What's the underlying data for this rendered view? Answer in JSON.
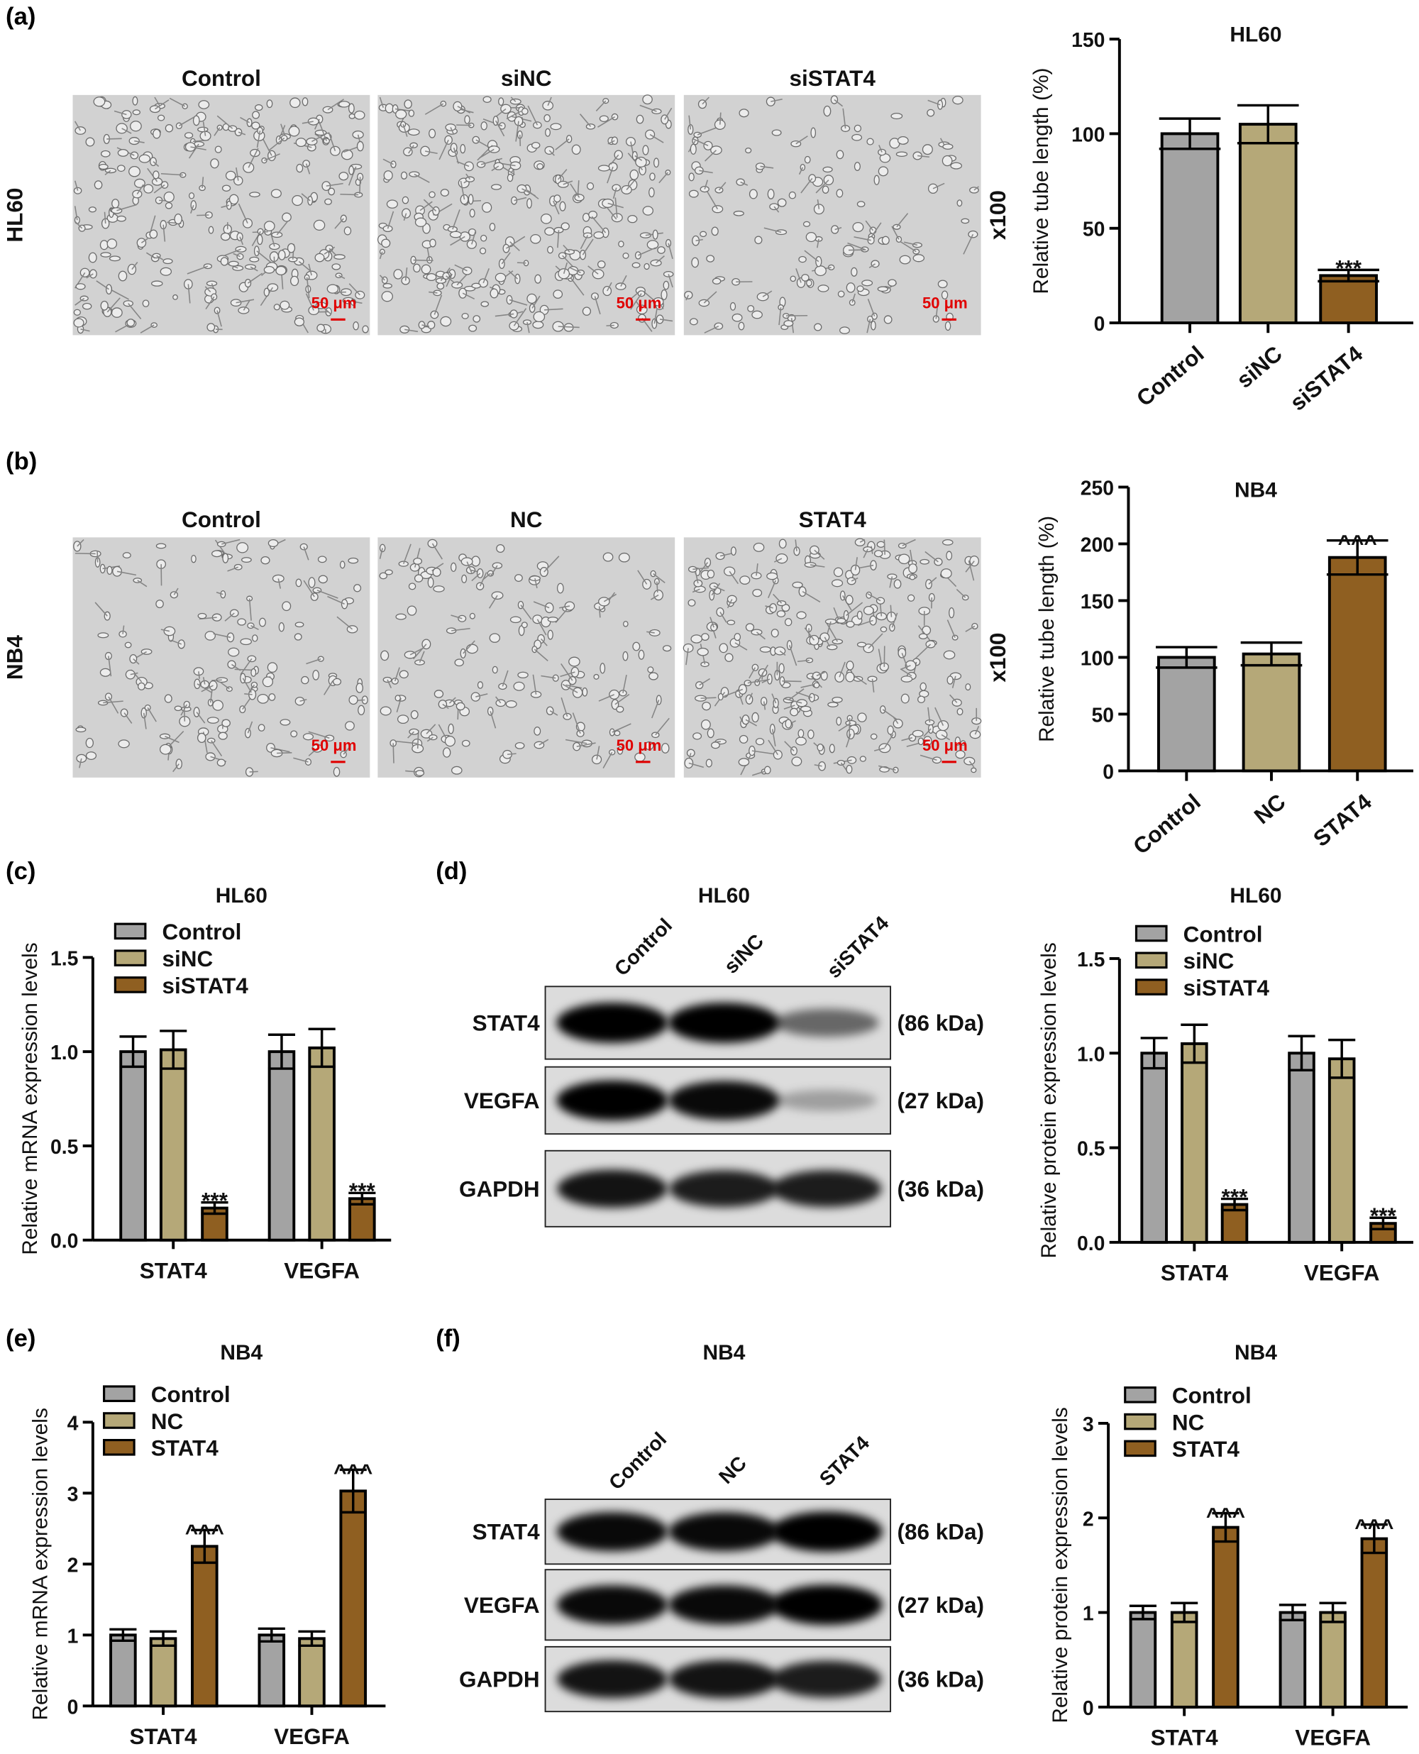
{
  "panel_labels": [
    "(a)",
    "(b)",
    "(c)",
    "(d)",
    "(e)",
    "(f)"
  ],
  "colors": {
    "control": "#a3a3a3",
    "nc": "#b5a878",
    "treatment": "#8f5f21"
  },
  "micrographs": [
    {
      "row_label": "HL60",
      "magnification": "x100",
      "scale_bar": "50 μm",
      "titles": [
        "Control",
        "siNC",
        "siSTAT4"
      ]
    },
    {
      "row_label": "NB4",
      "magnification": "x100",
      "scale_bar": "50 μm",
      "titles": [
        "Control",
        "NC",
        "STAT4"
      ]
    }
  ],
  "western_blots": [
    {
      "title": "HL60",
      "lanes": [
        "Control",
        "siNC",
        "siSTAT4"
      ],
      "rows": [
        {
          "protein": "STAT4",
          "size": "(86 kDa)",
          "band_intensity": [
            1.0,
            1.0,
            0.45
          ]
        },
        {
          "protein": "VEGFA",
          "size": "(27 kDa)",
          "band_intensity": [
            1.0,
            0.95,
            0.15
          ]
        },
        {
          "protein": "GAPDH",
          "size": "(36 kDa)",
          "band_intensity": [
            0.9,
            0.85,
            0.85
          ]
        }
      ]
    },
    {
      "title": "NB4",
      "lanes": [
        "Control",
        "NC",
        "STAT4"
      ],
      "rows": [
        {
          "protein": "STAT4",
          "size": "(86 kDa)",
          "band_intensity": [
            0.95,
            0.95,
            1.0
          ]
        },
        {
          "protein": "VEGFA",
          "size": "(27 kDa)",
          "band_intensity": [
            0.95,
            0.95,
            1.0
          ]
        },
        {
          "protein": "GAPDH",
          "size": "(36 kDa)",
          "band_intensity": [
            0.9,
            0.9,
            0.85
          ]
        }
      ]
    }
  ],
  "chart_data": [
    {
      "type": "bar",
      "title": "HL60",
      "ylabel": "Relative tube length (%)",
      "ylim": [
        0,
        150
      ],
      "yticks": [
        0,
        50,
        100,
        150
      ],
      "ytick_labels": [
        "0",
        "50",
        "100",
        "150"
      ],
      "categories": [
        "Control",
        "siNC",
        "siSTAT4"
      ],
      "values": [
        100,
        105,
        25
      ],
      "errors": [
        8,
        10,
        3
      ],
      "significance": [
        "",
        "",
        "***"
      ],
      "grid": false
    },
    {
      "type": "bar",
      "title": "NB4",
      "ylabel": "Relative tube length (%)",
      "ylim": [
        0,
        250
      ],
      "yticks": [
        0,
        50,
        100,
        150,
        200,
        250
      ],
      "ytick_labels": [
        "0",
        "50",
        "100",
        "150",
        "200",
        "250"
      ],
      "categories": [
        "Control",
        "NC",
        "STAT4"
      ],
      "values": [
        100,
        103,
        188
      ],
      "errors": [
        9,
        10,
        15
      ],
      "significance": [
        "",
        "",
        "^^^"
      ],
      "grid": false
    },
    {
      "type": "bar",
      "title": "HL60",
      "ylabel": "Relative mRNA expression levels",
      "ylim": [
        0,
        1.5
      ],
      "yticks": [
        0,
        0.5,
        1.0,
        1.5
      ],
      "ytick_labels": [
        "0.0",
        "0.5",
        "1.0",
        "1.5"
      ],
      "categories": [
        "STAT4",
        "VEGFA"
      ],
      "legend": "top-left",
      "grid": false,
      "series": [
        {
          "name": "Control",
          "values": [
            1.0,
            1.0
          ],
          "errors": [
            0.08,
            0.09
          ],
          "significance": [
            "",
            ""
          ]
        },
        {
          "name": "siNC",
          "values": [
            1.01,
            1.02
          ],
          "errors": [
            0.1,
            0.1
          ],
          "significance": [
            "",
            ""
          ]
        },
        {
          "name": "siSTAT4",
          "values": [
            0.17,
            0.22
          ],
          "errors": [
            0.03,
            0.03
          ],
          "significance": [
            "***",
            "***"
          ]
        }
      ]
    },
    {
      "type": "bar",
      "title": "HL60",
      "ylabel": "Relative protein expression levels",
      "ylim": [
        0,
        1.5
      ],
      "yticks": [
        0,
        0.5,
        1.0,
        1.5
      ],
      "ytick_labels": [
        "0.0",
        "0.5",
        "1.0",
        "1.5"
      ],
      "categories": [
        "STAT4",
        "VEGFA"
      ],
      "legend": "top-left",
      "grid": false,
      "series": [
        {
          "name": "Control",
          "values": [
            1.0,
            1.0
          ],
          "errors": [
            0.08,
            0.09
          ],
          "significance": [
            "",
            ""
          ]
        },
        {
          "name": "siNC",
          "values": [
            1.05,
            0.97
          ],
          "errors": [
            0.1,
            0.1
          ],
          "significance": [
            "",
            ""
          ]
        },
        {
          "name": "siSTAT4",
          "values": [
            0.2,
            0.1
          ],
          "errors": [
            0.03,
            0.03
          ],
          "significance": [
            "***",
            "***"
          ]
        }
      ]
    },
    {
      "type": "bar",
      "title": "NB4",
      "ylabel": "Relative mRNA expression levels",
      "ylim": [
        0,
        4
      ],
      "yticks": [
        0,
        1,
        2,
        3,
        4
      ],
      "ytick_labels": [
        "0",
        "1",
        "2",
        "3",
        "4"
      ],
      "categories": [
        "STAT4",
        "VEGFA"
      ],
      "legend": "top-left",
      "grid": false,
      "series": [
        {
          "name": "Control",
          "values": [
            1.0,
            1.0
          ],
          "errors": [
            0.08,
            0.09
          ],
          "significance": [
            "",
            ""
          ]
        },
        {
          "name": "NC",
          "values": [
            0.95,
            0.95
          ],
          "errors": [
            0.1,
            0.1
          ],
          "significance": [
            "",
            ""
          ]
        },
        {
          "name": "STAT4",
          "values": [
            2.25,
            3.03
          ],
          "errors": [
            0.23,
            0.3
          ],
          "significance": [
            "^^^",
            "^^^"
          ]
        }
      ]
    },
    {
      "type": "bar",
      "title": "NB4",
      "ylabel": "Relative protein expression levels",
      "ylim": [
        0,
        3
      ],
      "yticks": [
        0,
        1,
        2,
        3
      ],
      "ytick_labels": [
        "0",
        "1",
        "2",
        "3"
      ],
      "categories": [
        "STAT4",
        "VEGFA"
      ],
      "legend": "top-left",
      "grid": false,
      "series": [
        {
          "name": "Control",
          "values": [
            1.0,
            1.0
          ],
          "errors": [
            0.07,
            0.08
          ],
          "significance": [
            "",
            ""
          ]
        },
        {
          "name": "NC",
          "values": [
            1.0,
            1.0
          ],
          "errors": [
            0.1,
            0.1
          ],
          "significance": [
            "",
            ""
          ]
        },
        {
          "name": "STAT4",
          "values": [
            1.9,
            1.78
          ],
          "errors": [
            0.15,
            0.15
          ],
          "significance": [
            "^^^",
            "^^^"
          ]
        }
      ]
    }
  ]
}
